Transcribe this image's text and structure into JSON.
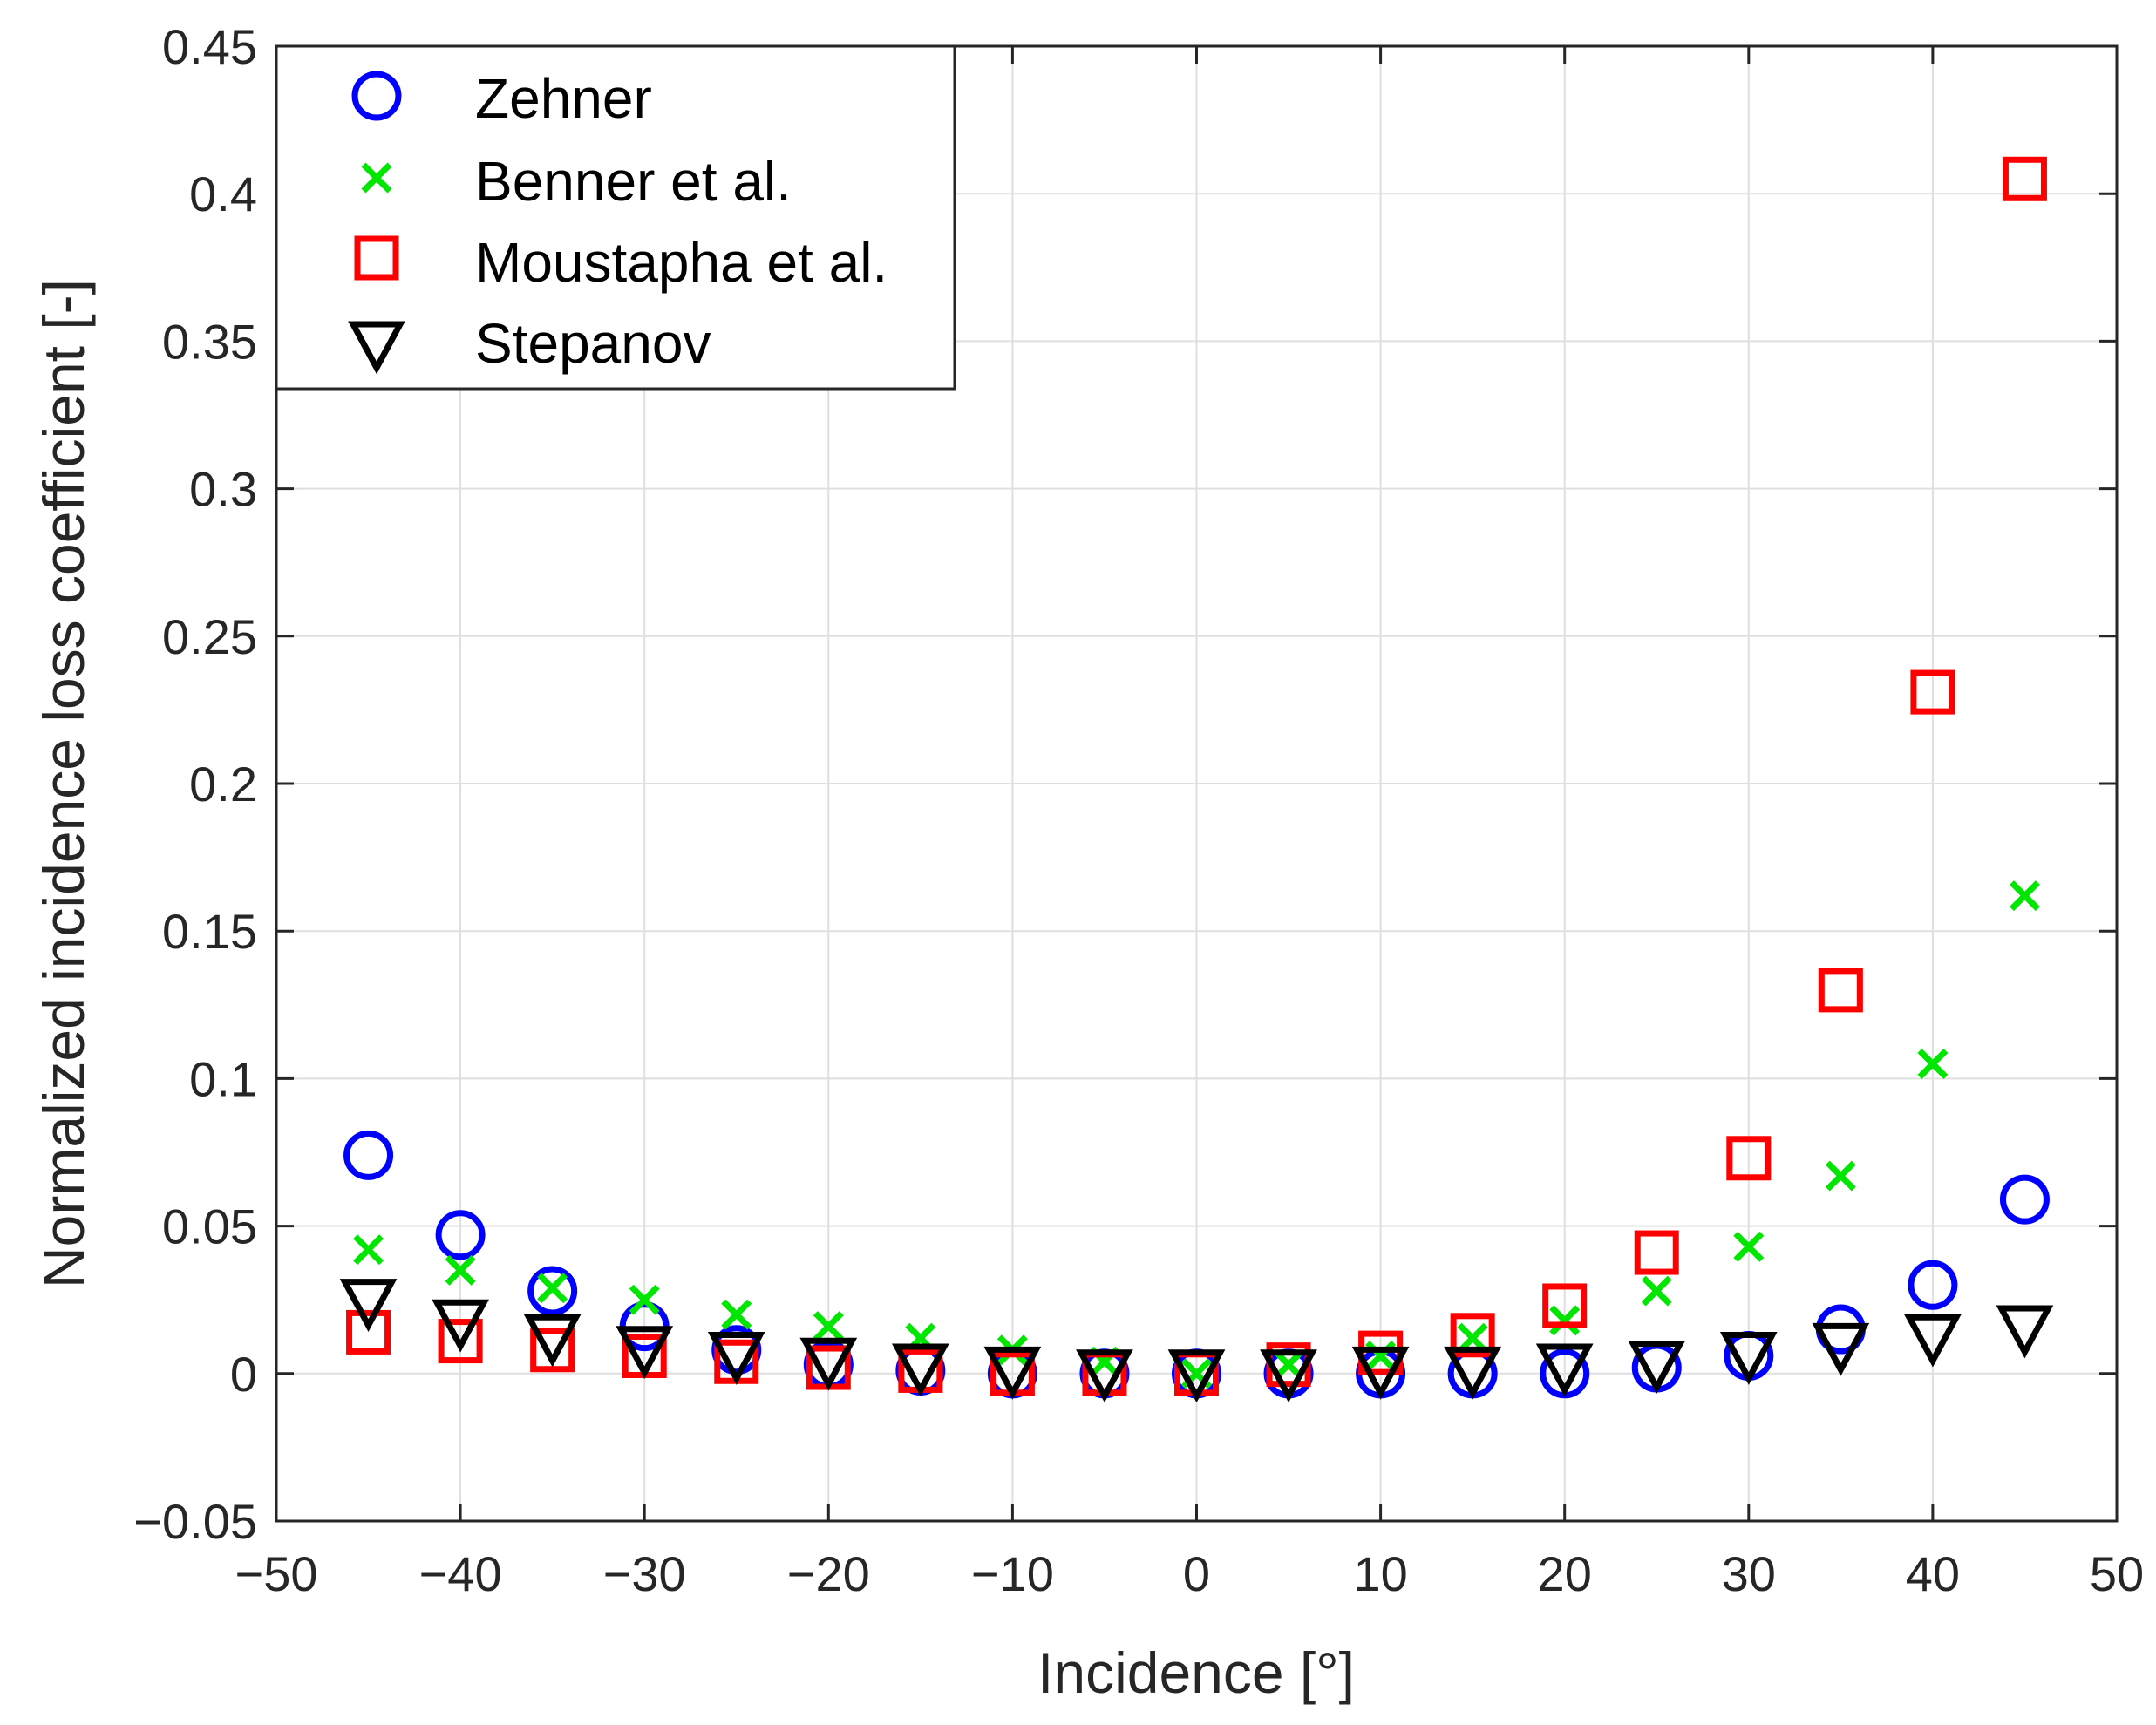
{
  "chart_data": {
    "type": "scatter",
    "title": "",
    "xlabel": "Incidence [°]",
    "ylabel": "Normalized incidence loss coefficient [-]",
    "xlim": [
      -50,
      50
    ],
    "ylim": [
      -0.05,
      0.45
    ],
    "grid": true,
    "legend_position": "top-left",
    "x_ticks": [
      -50,
      -40,
      -30,
      -20,
      -10,
      0,
      10,
      20,
      30,
      40,
      50
    ],
    "x_tick_labels": [
      "−50",
      "−40",
      "−30",
      "−20",
      "−10",
      "0",
      "10",
      "20",
      "30",
      "40",
      "50"
    ],
    "y_ticks": [
      -0.05,
      0,
      0.05,
      0.1,
      0.15,
      0.2,
      0.25,
      0.3,
      0.35,
      0.4,
      0.45
    ],
    "y_tick_labels": [
      "−0.05",
      "0",
      "0.05",
      "0.1",
      "0.15",
      "0.2",
      "0.25",
      "0.3",
      "0.35",
      "0.4",
      "0.45"
    ],
    "x": [
      -45,
      -40,
      -35,
      -30,
      -25,
      -20,
      -15,
      -10,
      -5,
      0,
      5,
      10,
      15,
      20,
      25,
      30,
      35,
      40,
      45
    ],
    "series": [
      {
        "name": "Zehner",
        "marker": "circle",
        "color": "#0000ff",
        "values": [
          0.074,
          0.047,
          0.028,
          0.016,
          0.008,
          0.003,
          0.001,
          0.0,
          0.0,
          0.0,
          0.0,
          0.0,
          0.0,
          0.0,
          0.002,
          0.006,
          0.015,
          0.03,
          0.059
        ]
      },
      {
        "name": "Benner et al.",
        "marker": "x",
        "color": "#00e600",
        "values": [
          0.042,
          0.035,
          0.029,
          0.025,
          0.02,
          0.016,
          0.012,
          0.008,
          0.004,
          0.0,
          0.003,
          0.006,
          0.012,
          0.018,
          0.028,
          0.043,
          0.067,
          0.105,
          0.162
        ]
      },
      {
        "name": "Moustapha et al.",
        "marker": "square",
        "color": "#ff0000",
        "values": [
          0.014,
          0.011,
          0.008,
          0.006,
          0.004,
          0.002,
          0.001,
          0.0,
          0.0,
          0.0,
          0.003,
          0.007,
          0.013,
          0.023,
          0.041,
          0.073,
          0.13,
          0.231,
          0.405
        ]
      },
      {
        "name": "Stepanov",
        "marker": "triangle-down",
        "color": "#000000",
        "values": [
          0.024,
          0.017,
          0.012,
          0.008,
          0.006,
          0.004,
          0.002,
          0.001,
          0.0,
          0.0,
          0.0,
          0.001,
          0.001,
          0.002,
          0.003,
          0.006,
          0.009,
          0.012,
          0.015
        ]
      }
    ]
  }
}
